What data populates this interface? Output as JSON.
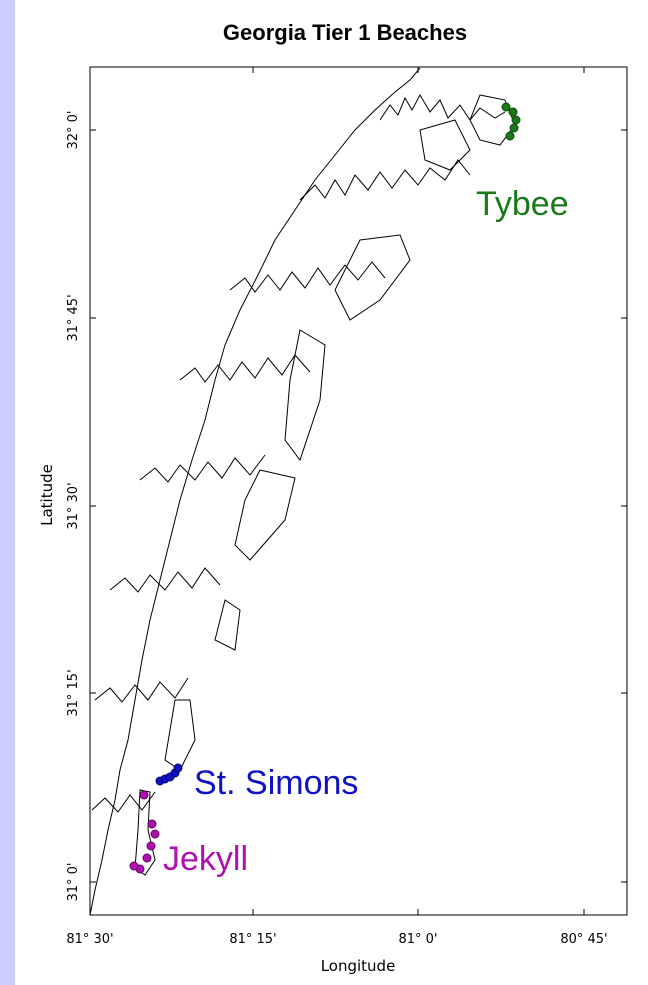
{
  "title": "Georgia Tier 1 Beaches",
  "axes": {
    "xlabel": "Longitude",
    "ylabel": "Latitude",
    "x_ticks": [
      "81° 30'",
      "81° 15'",
      "81° 0'",
      "80° 45'"
    ],
    "y_ticks": [
      "32° 0'",
      "31° 45'",
      "31° 30'",
      "31° 15'",
      "31° 0'"
    ]
  },
  "labels": {
    "tybee": "Tybee",
    "st_simons": "St. Simons",
    "jekyll": "Jekyll"
  },
  "colors": {
    "tybee": "#1a7a1a",
    "st_simons": "#1010c8",
    "jekyll": "#b010b0",
    "frame_bg": "#ccccff",
    "coastline": "#000000"
  }
}
